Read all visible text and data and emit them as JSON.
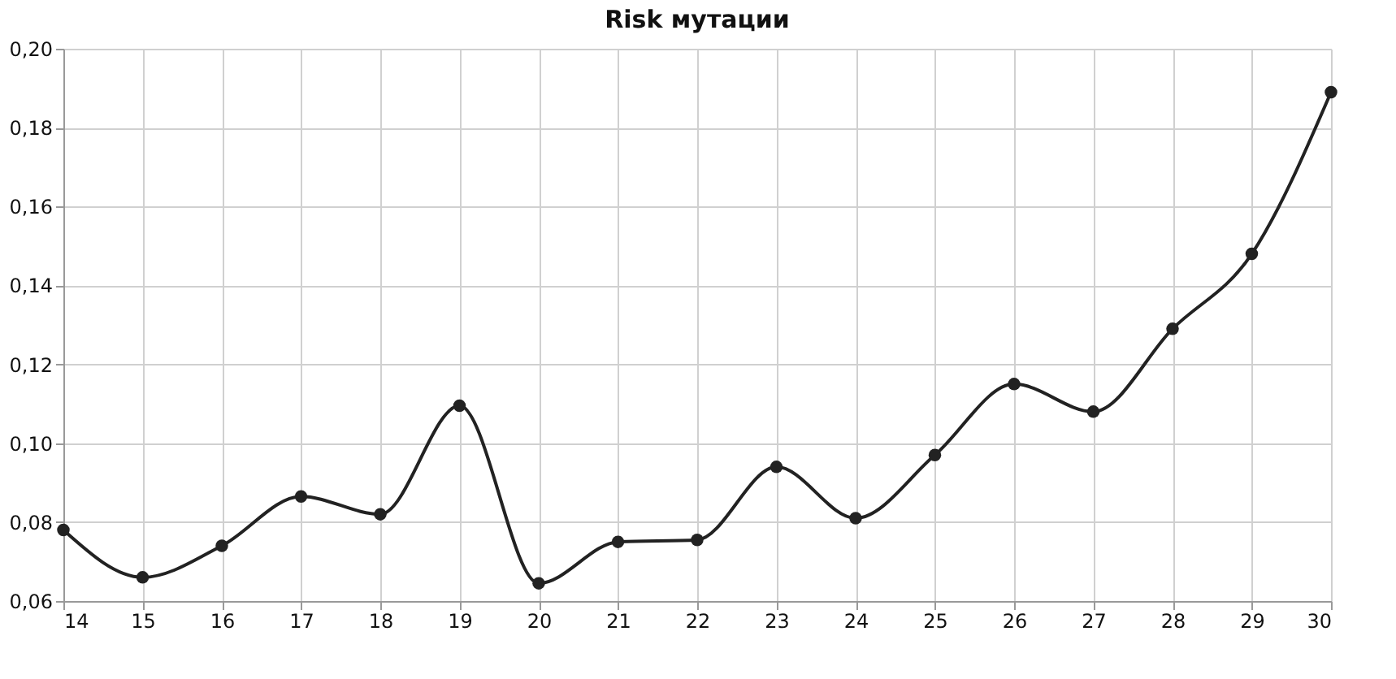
{
  "chart_data": {
    "type": "line",
    "title": "Risk мутации",
    "x": [
      14,
      15,
      16,
      17,
      18,
      19,
      20,
      21,
      22,
      23,
      24,
      25,
      26,
      27,
      28,
      29,
      30
    ],
    "series": [
      {
        "color": "#222222",
        "values": [
          0.078,
          0.066,
          0.074,
          0.0865,
          0.082,
          0.1095,
          0.0645,
          0.075,
          0.0755,
          0.094,
          0.081,
          0.097,
          0.115,
          0.108,
          0.129,
          0.148,
          0.189
        ]
      }
    ],
    "xlim": [
      14,
      30
    ],
    "xticks": [
      14,
      15,
      16,
      17,
      18,
      19,
      20,
      21,
      22,
      23,
      24,
      25,
      26,
      27,
      28,
      29,
      30
    ],
    "ylim": [
      0.06,
      0.2
    ],
    "yticks": [
      {
        "value": 0.06,
        "label": "0,06"
      },
      {
        "value": 0.08,
        "label": "0,08"
      },
      {
        "value": 0.1,
        "label": "0,10"
      },
      {
        "value": 0.12,
        "label": "0,12"
      },
      {
        "value": 0.14,
        "label": "0,14"
      },
      {
        "value": 0.16,
        "label": "0,16"
      },
      {
        "value": 0.18,
        "label": "0,18"
      },
      {
        "value": 0.2,
        "label": "0,20"
      }
    ],
    "grid": true,
    "marker": "circle",
    "line_style": "solid"
  }
}
